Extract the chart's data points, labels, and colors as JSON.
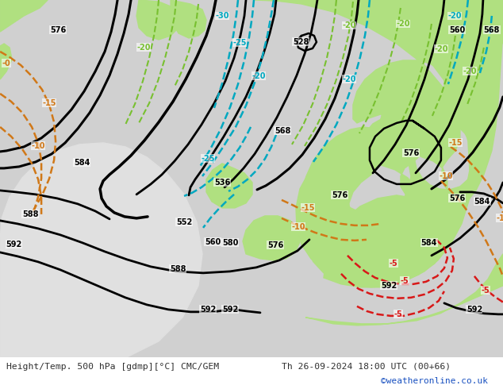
{
  "title_left": "Height/Temp. 500 hPa [gdmp][°C] CMC/GEM",
  "title_right": "Th 26-09-2024 18:00 UTC (00+66)",
  "credit": "©weatheronline.co.uk",
  "bg_color_ocean": "#d2d2d2",
  "bg_color_land": "#c8c8c8",
  "bg_color_green": "#b4e696",
  "bg_color_white_ocean": "#e8e8e8",
  "contour_color_black": "#000000",
  "contour_color_cyan": "#00a8c0",
  "contour_color_orange": "#d07818",
  "contour_color_red": "#d81818",
  "contour_color_lime": "#78c030",
  "font_color_bottom": "#303030",
  "font_color_credit": "#1850c0",
  "map_bg": "#d0d0d0",
  "ocean_color": "#d8d8d8"
}
